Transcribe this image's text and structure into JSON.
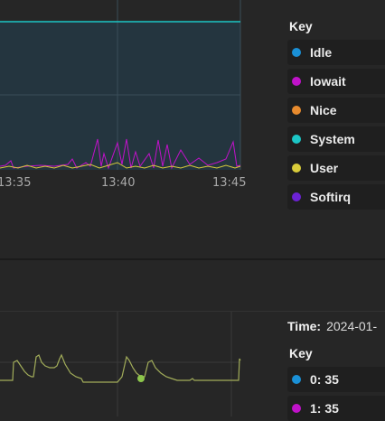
{
  "cpu_panel": {
    "legend": {
      "title": "Key",
      "items": [
        {
          "label": "Idle",
          "color": "#1a90d6"
        },
        {
          "label": "Iowait",
          "color": "#c012c9"
        },
        {
          "label": "Nice",
          "color": "#e88b2e"
        },
        {
          "label": "System",
          "color": "#1cc6c6"
        },
        {
          "label": "User",
          "color": "#d9cc3a"
        },
        {
          "label": "Softirq",
          "color": "#6c22d4"
        }
      ]
    }
  },
  "chart_data": [
    {
      "type": "area",
      "x_ticks": [
        "13:35",
        "13:40",
        "13:45"
      ],
      "series": [
        {
          "name": "Idle",
          "color": "#1a90d6",
          "values": [
            97,
            97,
            97,
            97,
            97,
            97,
            97,
            97,
            97,
            97,
            97,
            97,
            97,
            97,
            97,
            97,
            97,
            97,
            97,
            97
          ]
        },
        {
          "name": "Iowait",
          "color": "#c012c9",
          "values": [
            1,
            2,
            1,
            3,
            2,
            4,
            2,
            1,
            3,
            2,
            8,
            4,
            12,
            6,
            3,
            9,
            4,
            2,
            3,
            6
          ]
        },
        {
          "name": "User",
          "color": "#d9cc3a",
          "values": [
            1,
            1,
            1,
            1,
            1,
            2,
            1,
            1,
            1,
            1,
            2,
            1,
            3,
            2,
            1,
            2,
            1,
            1,
            1,
            2
          ]
        },
        {
          "name": "System",
          "color": "#1cc6c6",
          "values": [
            0.5,
            0.5,
            0.5,
            0.5,
            0.5,
            0.5,
            0.5,
            0.5,
            0.5,
            0.5,
            0.5,
            0.5,
            0.5,
            0.5,
            0.5,
            0.5,
            0.5,
            0.5,
            0.5,
            0.5
          ]
        }
      ]
    },
    {
      "type": "line",
      "series": [
        {
          "name": "0",
          "color": "#a2ad5a",
          "values": [
            10,
            10,
            10,
            10,
            10,
            40,
            14,
            12,
            10,
            10,
            10,
            10,
            10,
            35,
            20,
            10,
            10,
            10,
            10,
            38
          ]
        }
      ]
    }
  ],
  "bottom_panel": {
    "time_label": "Time:",
    "time_value": "2024-01-",
    "legend": {
      "title": "Key",
      "items": [
        {
          "label": "0: 35",
          "color": "#1a90d6"
        },
        {
          "label": "1: 35",
          "color": "#c012c9"
        }
      ]
    }
  }
}
